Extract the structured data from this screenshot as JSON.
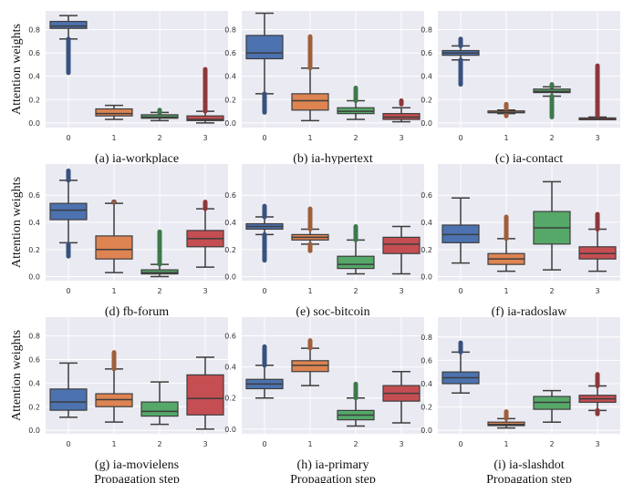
{
  "figure": {
    "ylabel": "Attention weights",
    "xlabel": "Propagation step"
  },
  "chart_data": [
    {
      "type": "box",
      "title": "(a) ia-workplace",
      "categories": [
        "0",
        "1",
        "2",
        "3"
      ],
      "ylim": [
        -0.04,
        0.96
      ],
      "yticks": [
        "0.0",
        "0.2",
        "0.4",
        "0.6",
        "0.8"
      ],
      "boxes": [
        {
          "whislo": 0.72,
          "q1": 0.81,
          "med": 0.83,
          "q3": 0.87,
          "whishi": 0.92,
          "fliers": [
            0.43,
            0.72
          ]
        },
        {
          "whislo": 0.03,
          "q1": 0.06,
          "med": 0.08,
          "q3": 0.12,
          "whishi": 0.15,
          "fliers": []
        },
        {
          "whislo": 0.02,
          "q1": 0.04,
          "med": 0.05,
          "q3": 0.07,
          "whishi": 0.09,
          "fliers": [
            0.09,
            0.11
          ]
        },
        {
          "whislo": 0.0,
          "q1": 0.02,
          "med": 0.03,
          "q3": 0.06,
          "whishi": 0.1,
          "fliers": [
            0.1,
            0.46
          ]
        }
      ]
    },
    {
      "type": "box",
      "title": "(b) ia-hypertext",
      "categories": [
        "0",
        "1",
        "2",
        "3"
      ],
      "ylim": [
        -0.04,
        0.96
      ],
      "yticks": [
        "0.0",
        "0.2",
        "0.4",
        "0.6",
        "0.8"
      ],
      "boxes": [
        {
          "whislo": 0.25,
          "q1": 0.55,
          "med": 0.6,
          "q3": 0.75,
          "whishi": 0.94,
          "fliers": [
            0.09,
            0.25
          ]
        },
        {
          "whislo": 0.02,
          "q1": 0.11,
          "med": 0.19,
          "q3": 0.25,
          "whishi": 0.47,
          "fliers": [
            0.47,
            0.74
          ]
        },
        {
          "whislo": 0.03,
          "q1": 0.08,
          "med": 0.1,
          "q3": 0.13,
          "whishi": 0.19,
          "fliers": [
            0.19,
            0.3
          ]
        },
        {
          "whislo": 0.01,
          "q1": 0.03,
          "med": 0.05,
          "q3": 0.08,
          "whishi": 0.13,
          "fliers": [
            0.16,
            0.19
          ]
        }
      ]
    },
    {
      "type": "box",
      "title": "(c) ia-contact",
      "categories": [
        "0",
        "1",
        "2",
        "3"
      ],
      "ylim": [
        -0.04,
        0.96
      ],
      "yticks": [
        "0.0",
        "0.2",
        "0.4",
        "0.6",
        "0.8"
      ],
      "boxes": [
        {
          "whislo": 0.54,
          "q1": 0.58,
          "med": 0.6,
          "q3": 0.62,
          "whishi": 0.66,
          "fliers": [
            0.33,
            0.54,
            0.66,
            0.72
          ]
        },
        {
          "whislo": 0.08,
          "q1": 0.09,
          "med": 0.09,
          "q3": 0.1,
          "whishi": 0.11,
          "fliers": [
            0.06,
            0.08,
            0.11,
            0.16
          ]
        },
        {
          "whislo": 0.23,
          "q1": 0.26,
          "med": 0.27,
          "q3": 0.29,
          "whishi": 0.31,
          "fliers": [
            0.05,
            0.23,
            0.31,
            0.33
          ]
        },
        {
          "whislo": 0.03,
          "q1": 0.03,
          "med": 0.04,
          "q3": 0.04,
          "whishi": 0.05,
          "fliers": [
            0.05,
            0.49
          ]
        }
      ]
    },
    {
      "type": "box",
      "title": "(d) fb-forum",
      "categories": [
        "0",
        "1",
        "2",
        "3"
      ],
      "ylim": [
        -0.03,
        0.83
      ],
      "yticks": [
        "0.0",
        "0.2",
        "0.4",
        "0.6"
      ],
      "boxes": [
        {
          "whislo": 0.25,
          "q1": 0.42,
          "med": 0.49,
          "q3": 0.54,
          "whishi": 0.71,
          "fliers": [
            0.15,
            0.24,
            0.71,
            0.78
          ]
        },
        {
          "whislo": 0.03,
          "q1": 0.13,
          "med": 0.2,
          "q3": 0.3,
          "whishi": 0.54,
          "fliers": [
            0.55
          ]
        },
        {
          "whislo": 0.0,
          "q1": 0.02,
          "med": 0.03,
          "q3": 0.05,
          "whishi": 0.09,
          "fliers": [
            0.09,
            0.33
          ]
        },
        {
          "whislo": 0.07,
          "q1": 0.22,
          "med": 0.28,
          "q3": 0.34,
          "whishi": 0.5,
          "fliers": [
            0.5,
            0.55
          ]
        }
      ]
    },
    {
      "type": "box",
      "title": "(e) soc-bitcoin",
      "categories": [
        "0",
        "1",
        "2",
        "3"
      ],
      "ylim": [
        -0.03,
        0.83
      ],
      "yticks": [
        "0.0",
        "0.2",
        "0.4",
        "0.6"
      ],
      "boxes": [
        {
          "whislo": 0.31,
          "q1": 0.35,
          "med": 0.37,
          "q3": 0.39,
          "whishi": 0.44,
          "fliers": [
            0.12,
            0.31,
            0.44,
            0.52
          ]
        },
        {
          "whislo": 0.24,
          "q1": 0.27,
          "med": 0.29,
          "q3": 0.31,
          "whishi": 0.35,
          "fliers": [
            0.19,
            0.24,
            0.35,
            0.5
          ]
        },
        {
          "whislo": 0.02,
          "q1": 0.06,
          "med": 0.09,
          "q3": 0.15,
          "whishi": 0.27,
          "fliers": [
            0.27,
            0.37
          ]
        },
        {
          "whislo": 0.02,
          "q1": 0.17,
          "med": 0.24,
          "q3": 0.29,
          "whishi": 0.37,
          "fliers": []
        }
      ]
    },
    {
      "type": "box",
      "title": "(f) ia-radoslaw",
      "categories": [
        "0",
        "1",
        "2",
        "3"
      ],
      "ylim": [
        -0.03,
        0.83
      ],
      "yticks": [
        "0.0",
        "0.2",
        "0.4",
        "0.6"
      ],
      "boxes": [
        {
          "whislo": 0.1,
          "q1": 0.25,
          "med": 0.31,
          "q3": 0.38,
          "whishi": 0.58,
          "fliers": []
        },
        {
          "whislo": 0.04,
          "q1": 0.09,
          "med": 0.13,
          "q3": 0.17,
          "whishi": 0.28,
          "fliers": [
            0.28,
            0.44
          ]
        },
        {
          "whislo": 0.05,
          "q1": 0.24,
          "med": 0.36,
          "q3": 0.48,
          "whishi": 0.7,
          "fliers": []
        },
        {
          "whislo": 0.04,
          "q1": 0.13,
          "med": 0.17,
          "q3": 0.22,
          "whishi": 0.35,
          "fliers": [
            0.35,
            0.46
          ]
        }
      ]
    },
    {
      "type": "box",
      "title": "(g) ia-movielens",
      "categories": [
        "0",
        "1",
        "2",
        "3"
      ],
      "ylim": [
        -0.03,
        0.96
      ],
      "yticks": [
        "0.0",
        "0.2",
        "0.4",
        "0.6",
        "0.8"
      ],
      "boxes": [
        {
          "whislo": 0.11,
          "q1": 0.17,
          "med": 0.24,
          "q3": 0.35,
          "whishi": 0.57,
          "fliers": []
        },
        {
          "whislo": 0.07,
          "q1": 0.2,
          "med": 0.26,
          "q3": 0.31,
          "whishi": 0.52,
          "fliers": [
            0.52,
            0.66
          ]
        },
        {
          "whislo": 0.05,
          "q1": 0.12,
          "med": 0.16,
          "q3": 0.24,
          "whishi": 0.41,
          "fliers": []
        },
        {
          "whislo": 0.01,
          "q1": 0.13,
          "med": 0.27,
          "q3": 0.47,
          "whishi": 0.62,
          "fliers": []
        }
      ]
    },
    {
      "type": "box",
      "title": "(h) ia-primary",
      "categories": [
        "0",
        "1",
        "2",
        "3"
      ],
      "ylim": [
        -0.03,
        0.72
      ],
      "yticks": [
        "0.0",
        "0.2",
        "0.4",
        "0.6"
      ],
      "boxes": [
        {
          "whislo": 0.2,
          "q1": 0.26,
          "med": 0.29,
          "q3": 0.32,
          "whishi": 0.41,
          "fliers": [
            0.41,
            0.53
          ]
        },
        {
          "whislo": 0.28,
          "q1": 0.37,
          "med": 0.41,
          "q3": 0.44,
          "whishi": 0.52,
          "fliers": [
            0.52,
            0.57
          ]
        },
        {
          "whislo": 0.02,
          "q1": 0.06,
          "med": 0.09,
          "q3": 0.12,
          "whishi": 0.2,
          "fliers": [
            0.2,
            0.29
          ]
        },
        {
          "whislo": 0.04,
          "q1": 0.18,
          "med": 0.23,
          "q3": 0.28,
          "whishi": 0.37,
          "fliers": []
        }
      ]
    },
    {
      "type": "box",
      "title": "(i) ia-slashdot",
      "categories": [
        "0",
        "1",
        "2",
        "3"
      ],
      "ylim": [
        -0.03,
        0.97
      ],
      "yticks": [
        "0.0",
        "0.2",
        "0.4",
        "0.6",
        "0.8"
      ],
      "boxes": [
        {
          "whislo": 0.32,
          "q1": 0.4,
          "med": 0.45,
          "q3": 0.5,
          "whishi": 0.67,
          "fliers": [
            0.67,
            0.75
          ]
        },
        {
          "whislo": 0.02,
          "q1": 0.04,
          "med": 0.05,
          "q3": 0.07,
          "whishi": 0.1,
          "fliers": [
            0.1,
            0.16
          ]
        },
        {
          "whislo": 0.07,
          "q1": 0.18,
          "med": 0.24,
          "q3": 0.29,
          "whishi": 0.34,
          "fliers": []
        },
        {
          "whislo": 0.17,
          "q1": 0.24,
          "med": 0.27,
          "q3": 0.3,
          "whishi": 0.38,
          "fliers": [
            0.14,
            0.17,
            0.38,
            0.48
          ]
        }
      ]
    }
  ],
  "palette": [
    "#4c72b0",
    "#dd8452",
    "#55a868",
    "#c44e52"
  ],
  "panel_bg": "#eaeaf2",
  "grid_color": "#ffffff",
  "line_color": "#3d3d3d"
}
